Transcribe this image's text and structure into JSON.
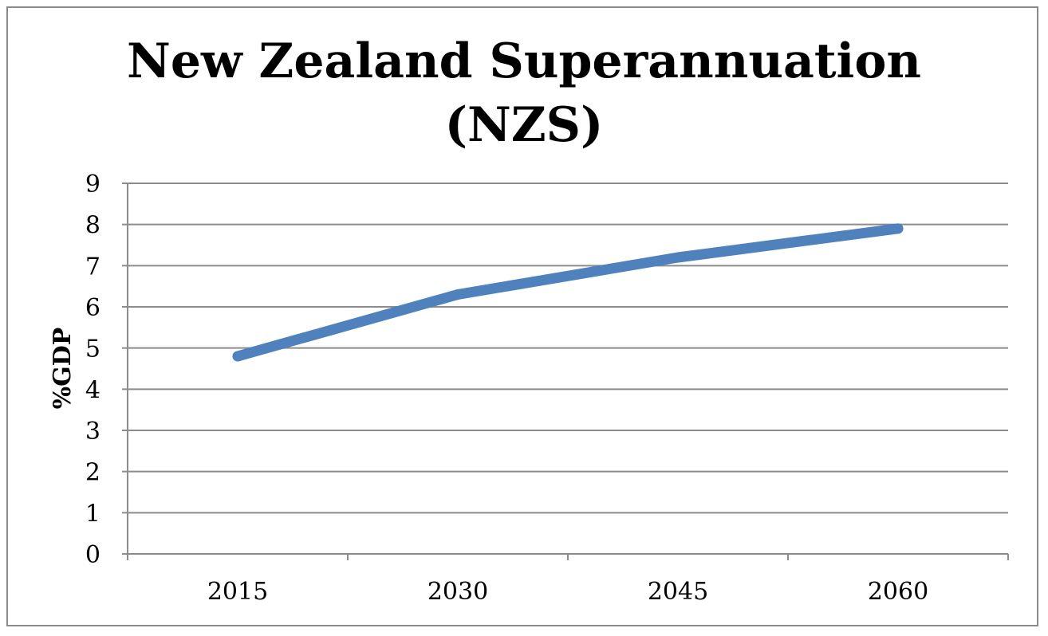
{
  "chart_data": {
    "type": "line",
    "title_lines": [
      "New Zealand Superannuation",
      "(NZS)"
    ],
    "categories": [
      "2015",
      "2030",
      "2045",
      "2060"
    ],
    "series": [
      {
        "values": [
          4.8,
          6.3,
          7.2,
          7.9
        ]
      }
    ],
    "xlabel": "",
    "ylabel": "%GDP",
    "ylim": [
      0,
      9
    ],
    "yticks": [
      0,
      1,
      2,
      3,
      4,
      5,
      6,
      7,
      8,
      9
    ],
    "grid": true,
    "legend": "none",
    "colors": {
      "line": "#4F81BD",
      "grid": "#8c8c8c",
      "frame": "#8a8a8a"
    }
  }
}
